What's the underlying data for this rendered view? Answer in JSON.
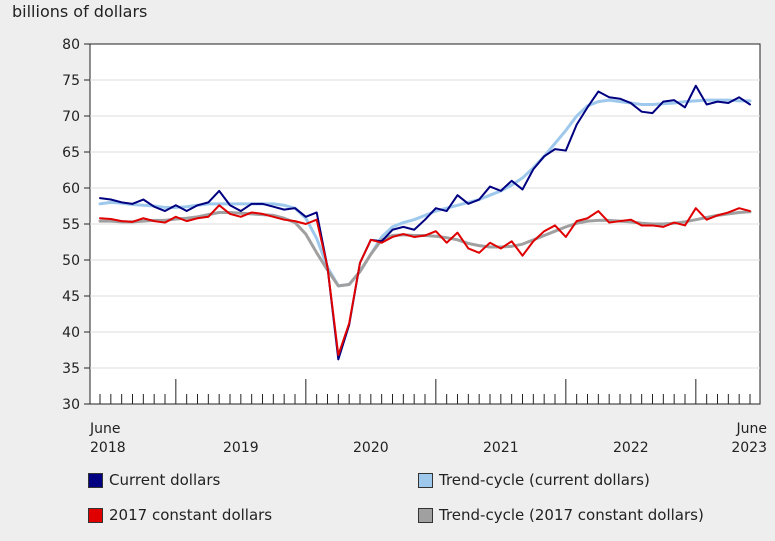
{
  "chart_data": {
    "type": "line",
    "ylabel": "billions of dollars",
    "ylim": [
      30,
      80
    ],
    "yticks": [
      30,
      35,
      40,
      45,
      50,
      55,
      60,
      65,
      70,
      75,
      80
    ],
    "x_start_label": {
      "month": "June",
      "year": "2018"
    },
    "x_end_label": {
      "month": "June",
      "year": "2023"
    },
    "year_labels": [
      "2019",
      "2020",
      "2021",
      "2022"
    ],
    "months_count": 61,
    "series": [
      {
        "name": "Current dollars",
        "color": "#000080",
        "values": [
          58.6,
          58.4,
          58.0,
          57.8,
          58.4,
          57.4,
          56.8,
          57.6,
          56.8,
          57.6,
          58.0,
          59.6,
          57.6,
          56.8,
          57.8,
          57.8,
          57.4,
          57.0,
          57.2,
          56.0,
          56.6,
          49.0,
          36.2,
          41.0,
          49.6,
          52.8,
          52.6,
          54.2,
          54.6,
          54.2,
          55.6,
          57.2,
          56.8,
          59.0,
          57.8,
          58.4,
          60.2,
          59.6,
          61.0,
          59.8,
          62.6,
          64.4,
          65.4,
          65.2,
          68.8,
          71.2,
          73.4,
          72.6,
          72.4,
          71.8,
          70.6,
          70.4,
          72.0,
          72.2,
          71.2,
          74.2,
          71.6,
          72.0,
          71.8,
          72.6,
          71.6
        ]
      },
      {
        "name": "Trend-cycle (current dollars)",
        "color": "#9ec9ec",
        "values": [
          57.8,
          58.0,
          57.9,
          57.7,
          57.6,
          57.5,
          57.3,
          57.3,
          57.4,
          57.6,
          57.8,
          57.8,
          57.8,
          57.8,
          57.8,
          57.8,
          57.8,
          57.6,
          57.2,
          55.8,
          53.0,
          49.0,
          46.4,
          46.6,
          48.4,
          50.8,
          53.2,
          54.6,
          55.2,
          55.6,
          56.2,
          56.8,
          57.2,
          57.6,
          58.0,
          58.4,
          59.0,
          59.6,
          60.4,
          61.4,
          62.8,
          64.4,
          66.2,
          68.0,
          70.0,
          71.4,
          72.0,
          72.2,
          72.0,
          71.8,
          71.6,
          71.6,
          71.7,
          71.8,
          72.0,
          72.1,
          72.2,
          72.2,
          72.2,
          72.1,
          72.1
        ]
      },
      {
        "name": "2017 constant dollars",
        "color": "#e00000",
        "values": [
          55.8,
          55.7,
          55.4,
          55.3,
          55.8,
          55.4,
          55.2,
          56.0,
          55.4,
          55.8,
          56.0,
          57.6,
          56.4,
          56.0,
          56.6,
          56.4,
          56.0,
          55.6,
          55.4,
          55.0,
          55.6,
          49.0,
          36.8,
          41.2,
          49.6,
          52.8,
          52.4,
          53.2,
          53.6,
          53.2,
          53.4,
          54.0,
          52.4,
          53.8,
          51.6,
          51.0,
          52.4,
          51.6,
          52.6,
          50.6,
          52.6,
          54.0,
          54.8,
          53.2,
          55.4,
          55.8,
          56.8,
          55.2,
          55.4,
          55.6,
          54.8,
          54.8,
          54.6,
          55.2,
          54.8,
          57.2,
          55.6,
          56.2,
          56.6,
          57.2,
          56.8
        ]
      },
      {
        "name": "Trend-cycle (2017 constant dollars)",
        "color": "#a0a0a0",
        "values": [
          55.4,
          55.4,
          55.3,
          55.3,
          55.4,
          55.5,
          55.5,
          55.7,
          55.8,
          56.0,
          56.3,
          56.6,
          56.6,
          56.5,
          56.4,
          56.3,
          56.2,
          55.8,
          55.2,
          53.6,
          51.0,
          48.6,
          46.4,
          46.6,
          48.4,
          50.8,
          52.8,
          53.4,
          53.5,
          53.4,
          53.4,
          53.3,
          53.1,
          52.8,
          52.3,
          52.0,
          51.8,
          51.8,
          51.9,
          52.2,
          52.8,
          53.4,
          54.0,
          54.6,
          55.1,
          55.4,
          55.5,
          55.5,
          55.4,
          55.3,
          55.1,
          55.0,
          55.0,
          55.1,
          55.3,
          55.6,
          55.9,
          56.2,
          56.4,
          56.6,
          56.7
        ]
      }
    ]
  }
}
